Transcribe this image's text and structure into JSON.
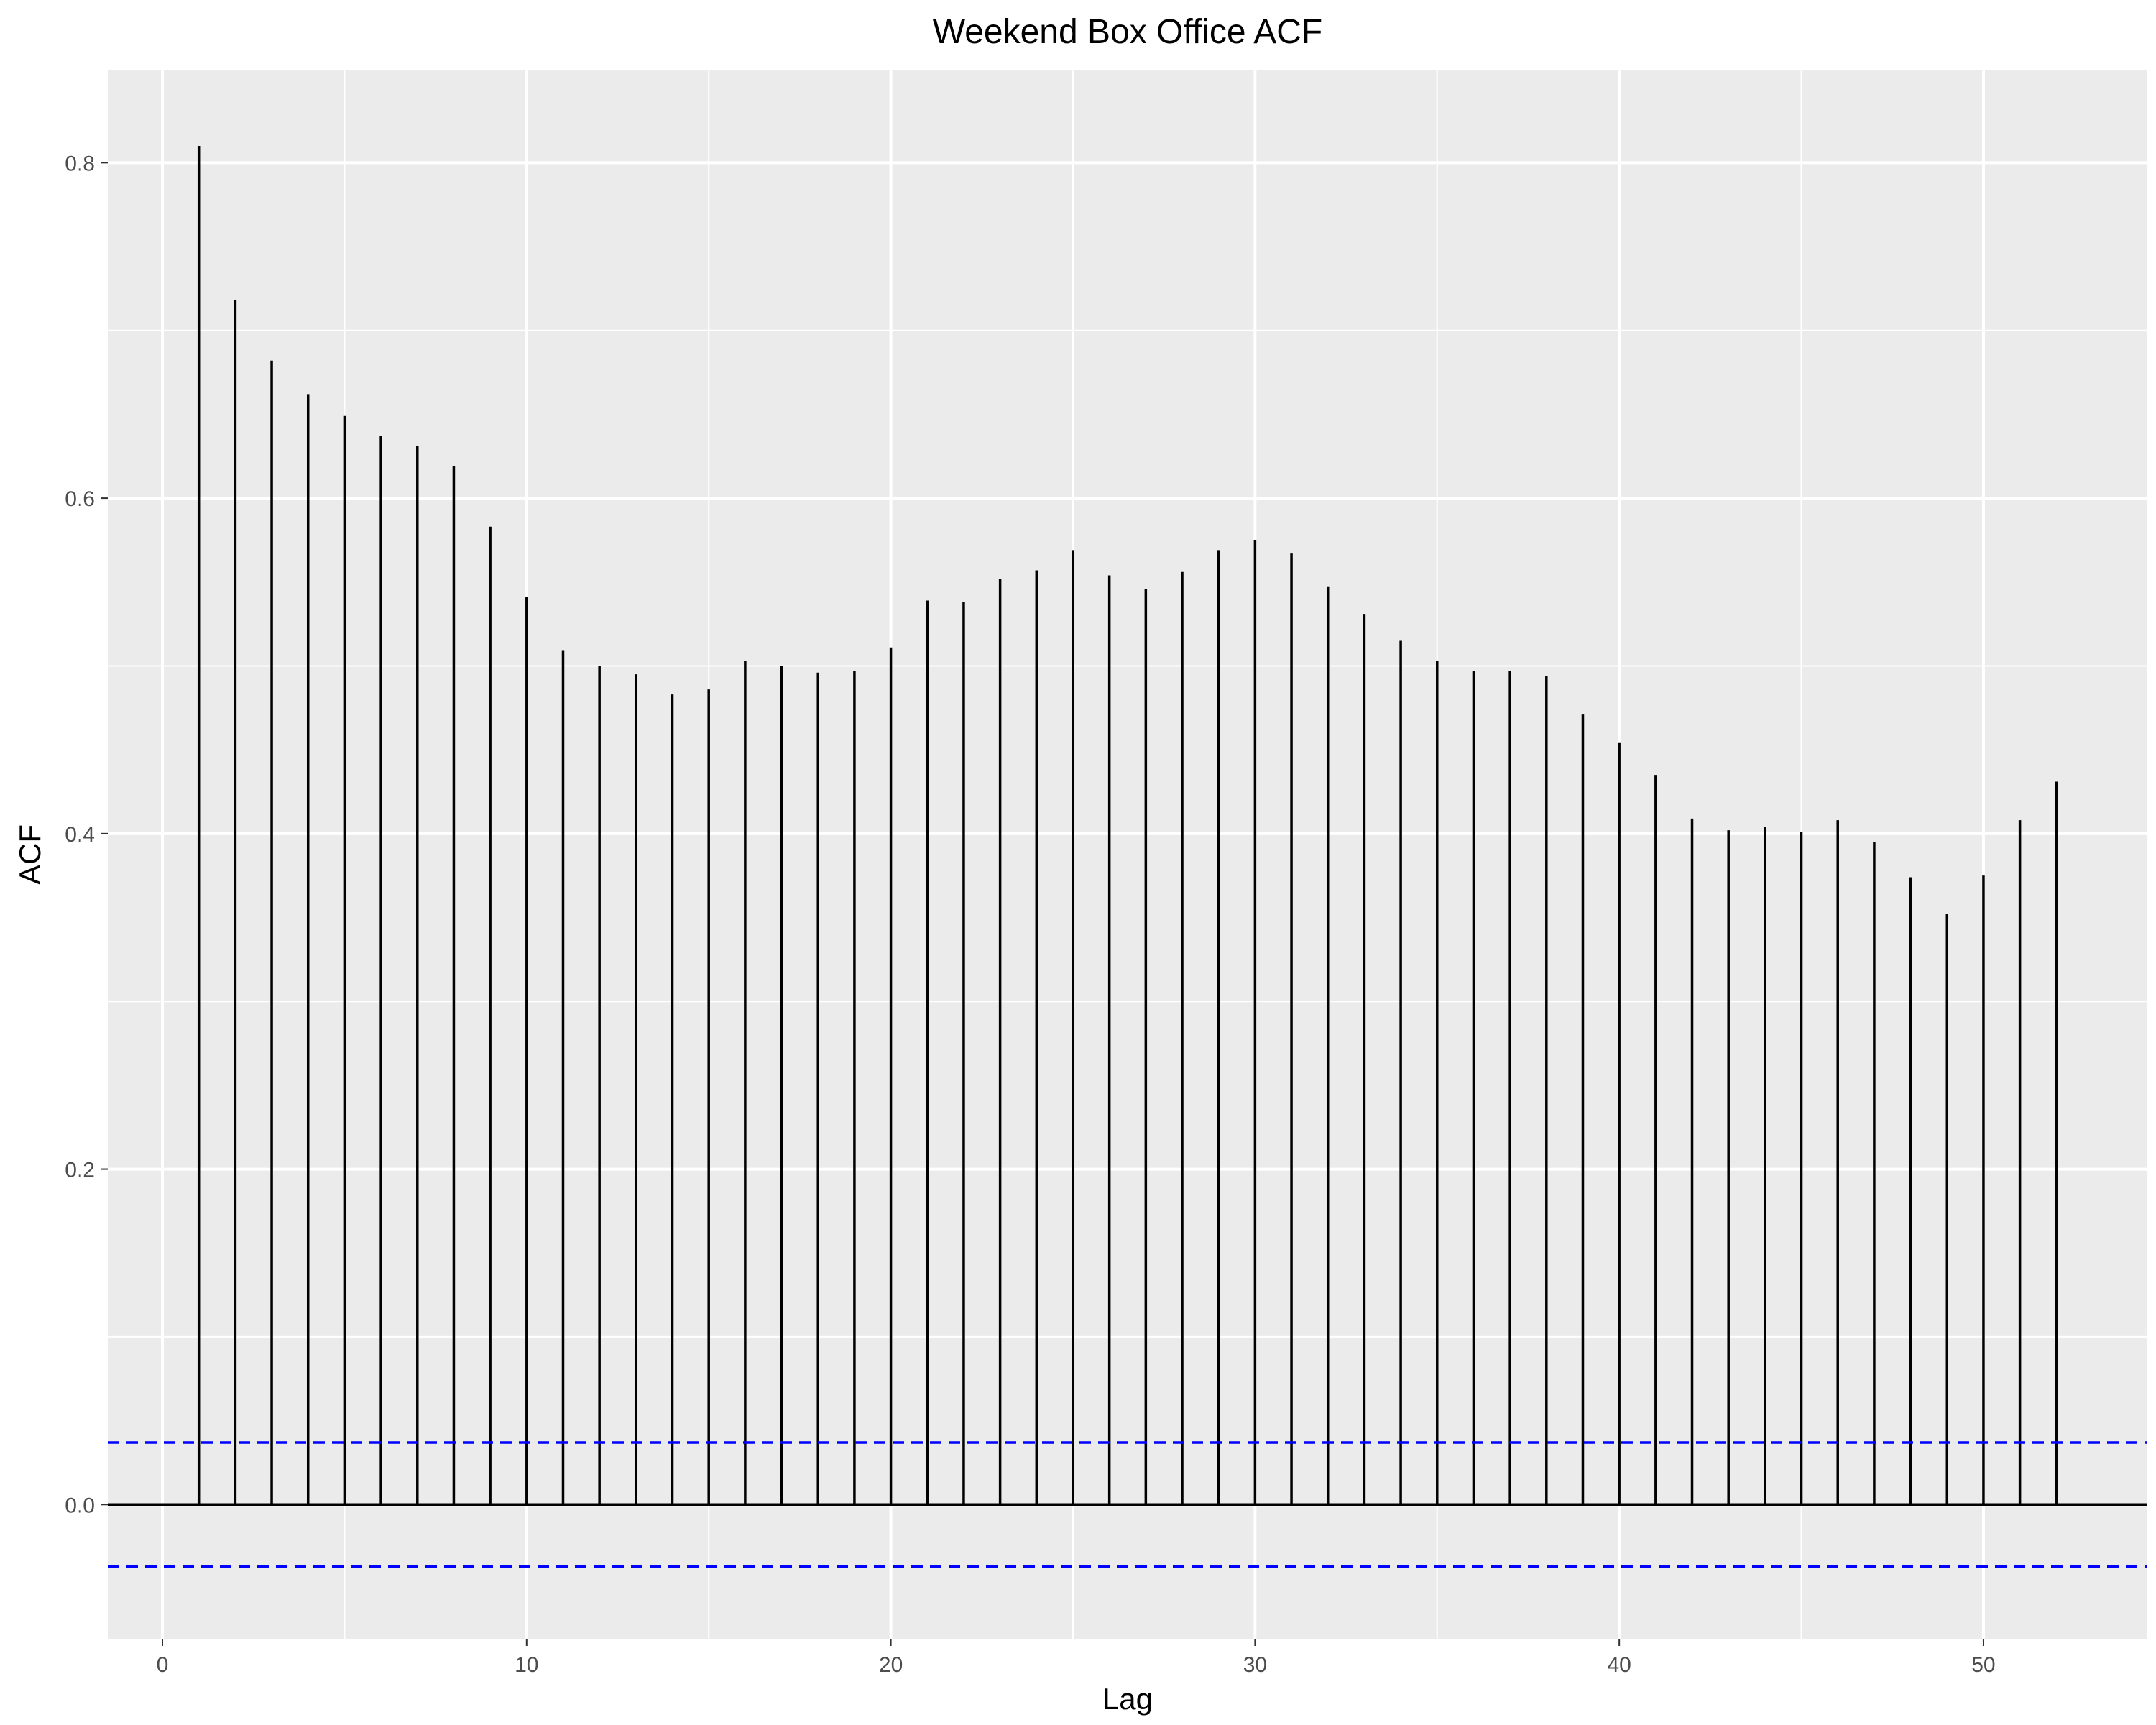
{
  "chart_data": {
    "type": "bar",
    "title": "Weekend Box Office ACF",
    "xlabel": "Lag",
    "ylabel": "ACF",
    "xlim": [
      -1.5,
      54.5
    ],
    "ylim": [
      -0.08,
      0.855
    ],
    "x_ticks": [
      0,
      10,
      20,
      30,
      40,
      50
    ],
    "x_tick_labels": [
      "0",
      "10",
      "20",
      "30",
      "40",
      "50"
    ],
    "y_ticks": [
      0.0,
      0.2,
      0.4,
      0.6,
      0.8
    ],
    "y_tick_labels": [
      "0.0",
      "0.2",
      "0.4",
      "0.6",
      "0.8"
    ],
    "grid": true,
    "legend": "none",
    "lags": [
      1,
      2,
      3,
      4,
      5,
      6,
      7,
      8,
      9,
      10,
      11,
      12,
      13,
      14,
      15,
      16,
      17,
      18,
      19,
      20,
      21,
      22,
      23,
      24,
      25,
      26,
      27,
      28,
      29,
      30,
      31,
      32,
      33,
      34,
      35,
      36,
      37,
      38,
      39,
      40,
      41,
      42,
      43,
      44,
      45,
      46,
      47,
      48,
      49,
      50,
      51,
      52
    ],
    "acf": [
      0.81,
      0.718,
      0.682,
      0.662,
      0.649,
      0.637,
      0.631,
      0.619,
      0.583,
      0.541,
      0.509,
      0.5,
      0.495,
      0.483,
      0.486,
      0.503,
      0.5,
      0.496,
      0.497,
      0.511,
      0.539,
      0.538,
      0.552,
      0.557,
      0.569,
      0.554,
      0.546,
      0.556,
      0.569,
      0.575,
      0.567,
      0.547,
      0.531,
      0.515,
      0.503,
      0.497,
      0.497,
      0.494,
      0.471,
      0.454,
      0.435,
      0.409,
      0.402,
      0.404,
      0.401,
      0.408,
      0.395,
      0.374,
      0.352,
      0.375,
      0.408,
      0.431
    ],
    "confidence_bounds": [
      0.037,
      -0.037
    ],
    "colors": {
      "panel": "#EBEBEB",
      "grid": "#FFFFFF",
      "bar": "#000000",
      "zero_line": "#000000",
      "bounds": "#0000FF",
      "tick_text": "#4D4D4D",
      "tick_mark": "#333333"
    }
  }
}
